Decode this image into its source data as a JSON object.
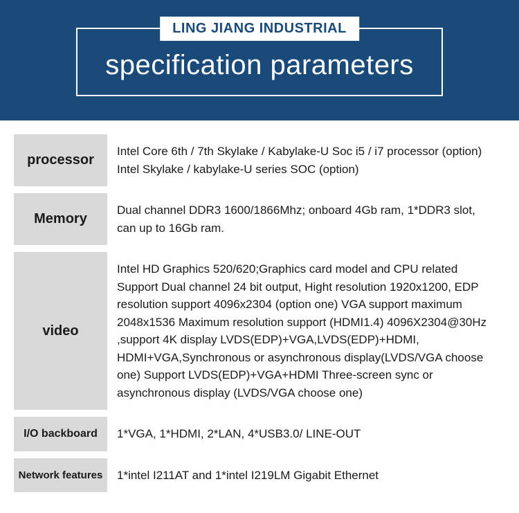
{
  "header": {
    "badge": "LING JIANG INDUSTRIAL",
    "title": "specification parameters",
    "band_bg": "#1a4a7a",
    "border_color": "#ffffff",
    "badge_bg": "#ffffff",
    "badge_color": "#1a4a7a",
    "title_color": "#ffffff",
    "title_fontsize": 40,
    "badge_fontsize": 20
  },
  "table": {
    "label_bg": "#d9d9d9",
    "label_color": "#1a1a1a",
    "value_color": "#1a1a1a",
    "value_fontsize": 17,
    "row_gap": 10,
    "rows": [
      {
        "label": "processor",
        "label_fontsize": 20,
        "value": "Intel Core 6th / 7th Skylake / Kabylake-U Soc i5 / i7 processor (option) Intel Skylake / kabylake-U series SOC (option)"
      },
      {
        "label": "Memory",
        "label_fontsize": 20,
        "value": "Dual channel DDR3 1600/1866Mhz; onboard 4Gb ram, 1*DDR3 slot, can up to 16Gb ram."
      },
      {
        "label": "video",
        "label_fontsize": 20,
        "value": "Intel HD Graphics 520/620;Graphics card model and CPU related Support Dual channel 24 bit output, Hight resolution 1920x1200, EDP resolution support 4096x2304 (option one)\nVGA support maximum 2048x1536\nMaximum resolution support (HDMI1.4) 4096X2304@30Hz ,support 4K display\nLVDS(EDP)+VGA,LVDS(EDP)+HDMI, HDMI+VGA,Synchronous or asynchronous display(LVDS/VGA choose one)\nSupport LVDS(EDP)+VGA+HDMI Three-screen sync or asynchronous display (LVDS/VGA choose one)"
      },
      {
        "label": "I/O backboard",
        "label_fontsize": 16,
        "value": "1*VGA, 1*HDMI, 2*LAN, 4*USB3.0/ LINE-OUT"
      },
      {
        "label": "Network features",
        "label_fontsize": 15,
        "value": "1*intel I211AT and 1*intel I219LM Gigabit Ethernet"
      }
    ]
  }
}
